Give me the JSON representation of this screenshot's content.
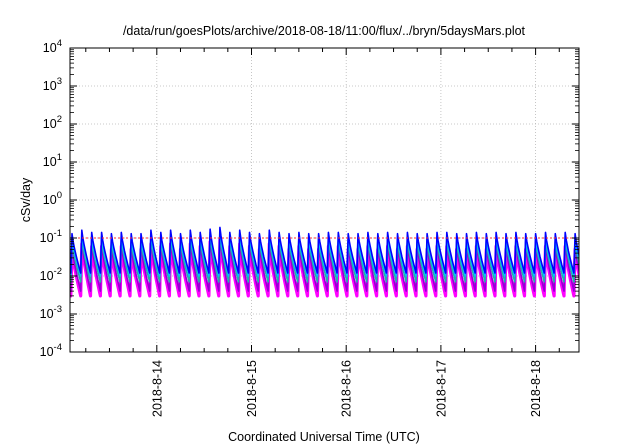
{
  "chart_data": {
    "type": "line",
    "title": "/data/run/goesPlots/archive/2018-08-18/11:00/flux/../bryn/5daysMars.plot",
    "xlabel": "Coordinated Universal Time (UTC)",
    "ylabel": "cSv/day",
    "x_range": [
      "2018-08-13T02:00",
      "2018-08-18T11:00"
    ],
    "ylim": [
      0.0001,
      10000
    ],
    "yscale": "log",
    "grid": true,
    "legend": "none",
    "x_ticks": [
      "2018-8-14",
      "2018-8-15",
      "2018-8-16",
      "2018-8-17",
      "2018-8-18"
    ],
    "y_ticks": [
      {
        "base": "10",
        "exp": "-4",
        "value": 0.0001
      },
      {
        "base": "10",
        "exp": "-3",
        "value": 0.001
      },
      {
        "base": "10",
        "exp": "-2",
        "value": 0.01
      },
      {
        "base": "10",
        "exp": "-1",
        "value": 0.1
      },
      {
        "base": "10",
        "exp": "0",
        "value": 1
      },
      {
        "base": "10",
        "exp": "1",
        "value": 10
      },
      {
        "base": "10",
        "exp": "2",
        "value": 100
      },
      {
        "base": "10",
        "exp": "3",
        "value": 1000
      },
      {
        "base": "10",
        "exp": "4",
        "value": 10000
      }
    ],
    "reference_line": {
      "value": 0.1,
      "color": "#ff3030"
    },
    "pattern": {
      "period_hours": 2.5,
      "first_peak": "2018-08-13T02:30",
      "description": "sawtooth: sharp rise at each peak then decay until next peak"
    },
    "series": [
      {
        "color": "#ff00ff",
        "peak_values": [
          0.05,
          0.07,
          0.06,
          0.06,
          0.05,
          0.06,
          0.05,
          0.05,
          0.07,
          0.06,
          0.07,
          0.05,
          0.07,
          0.06,
          0.08,
          0.09,
          0.06,
          0.07,
          0.06,
          0.05,
          0.07,
          0.06,
          0.05,
          0.06,
          0.05,
          0.05,
          0.06,
          0.06,
          0.05,
          0.05,
          0.06,
          0.05,
          0.06,
          0.05,
          0.06,
          0.05,
          0.05,
          0.06,
          0.06,
          0.05,
          0.05,
          0.06,
          0.05,
          0.06,
          0.05,
          0.06,
          0.05,
          0.05,
          0.06,
          0.05,
          0.06,
          0.05,
          0.05
        ],
        "trough_value": 0.003
      },
      {
        "color": "#9400d3",
        "peak_values": [
          0.06,
          0.08,
          0.07,
          0.07,
          0.06,
          0.07,
          0.06,
          0.06,
          0.08,
          0.07,
          0.08,
          0.06,
          0.08,
          0.07,
          0.09,
          0.1,
          0.07,
          0.08,
          0.07,
          0.06,
          0.08,
          0.07,
          0.06,
          0.07,
          0.06,
          0.06,
          0.07,
          0.07,
          0.06,
          0.06,
          0.07,
          0.06,
          0.07,
          0.06,
          0.07,
          0.06,
          0.06,
          0.07,
          0.07,
          0.06,
          0.06,
          0.07,
          0.06,
          0.07,
          0.06,
          0.07,
          0.06,
          0.06,
          0.07,
          0.06,
          0.07,
          0.06,
          0.06
        ],
        "trough_value": 0.004
      },
      {
        "color": "#20b2aa",
        "peak_values": [
          0.08,
          0.1,
          0.09,
          0.09,
          0.08,
          0.09,
          0.08,
          0.08,
          0.1,
          0.09,
          0.1,
          0.08,
          0.1,
          0.09,
          0.11,
          0.12,
          0.09,
          0.1,
          0.09,
          0.08,
          0.1,
          0.09,
          0.08,
          0.09,
          0.08,
          0.08,
          0.09,
          0.09,
          0.08,
          0.08,
          0.09,
          0.08,
          0.09,
          0.08,
          0.09,
          0.08,
          0.08,
          0.09,
          0.09,
          0.08,
          0.08,
          0.09,
          0.08,
          0.09,
          0.08,
          0.09,
          0.08,
          0.08,
          0.09,
          0.08,
          0.09,
          0.08,
          0.08
        ],
        "trough_value": 0.007
      },
      {
        "color": "#00bfff",
        "peak_values": [
          0.1,
          0.13,
          0.11,
          0.11,
          0.1,
          0.11,
          0.1,
          0.1,
          0.13,
          0.11,
          0.13,
          0.1,
          0.13,
          0.11,
          0.14,
          0.15,
          0.11,
          0.13,
          0.11,
          0.1,
          0.13,
          0.11,
          0.1,
          0.11,
          0.1,
          0.1,
          0.11,
          0.11,
          0.1,
          0.1,
          0.11,
          0.1,
          0.11,
          0.1,
          0.11,
          0.1,
          0.1,
          0.11,
          0.11,
          0.1,
          0.1,
          0.11,
          0.1,
          0.11,
          0.1,
          0.11,
          0.1,
          0.1,
          0.11,
          0.1,
          0.11,
          0.1,
          0.1
        ],
        "trough_value": 0.01
      },
      {
        "color": "#0000ff",
        "peak_values": [
          0.13,
          0.16,
          0.14,
          0.14,
          0.13,
          0.14,
          0.13,
          0.13,
          0.16,
          0.14,
          0.16,
          0.13,
          0.16,
          0.14,
          0.17,
          0.19,
          0.14,
          0.16,
          0.14,
          0.13,
          0.16,
          0.14,
          0.13,
          0.14,
          0.13,
          0.13,
          0.14,
          0.14,
          0.13,
          0.13,
          0.14,
          0.13,
          0.14,
          0.13,
          0.14,
          0.13,
          0.13,
          0.14,
          0.14,
          0.13,
          0.13,
          0.14,
          0.13,
          0.14,
          0.13,
          0.14,
          0.13,
          0.13,
          0.14,
          0.13,
          0.14,
          0.13,
          0.13
        ],
        "trough_value": 0.012
      }
    ]
  }
}
